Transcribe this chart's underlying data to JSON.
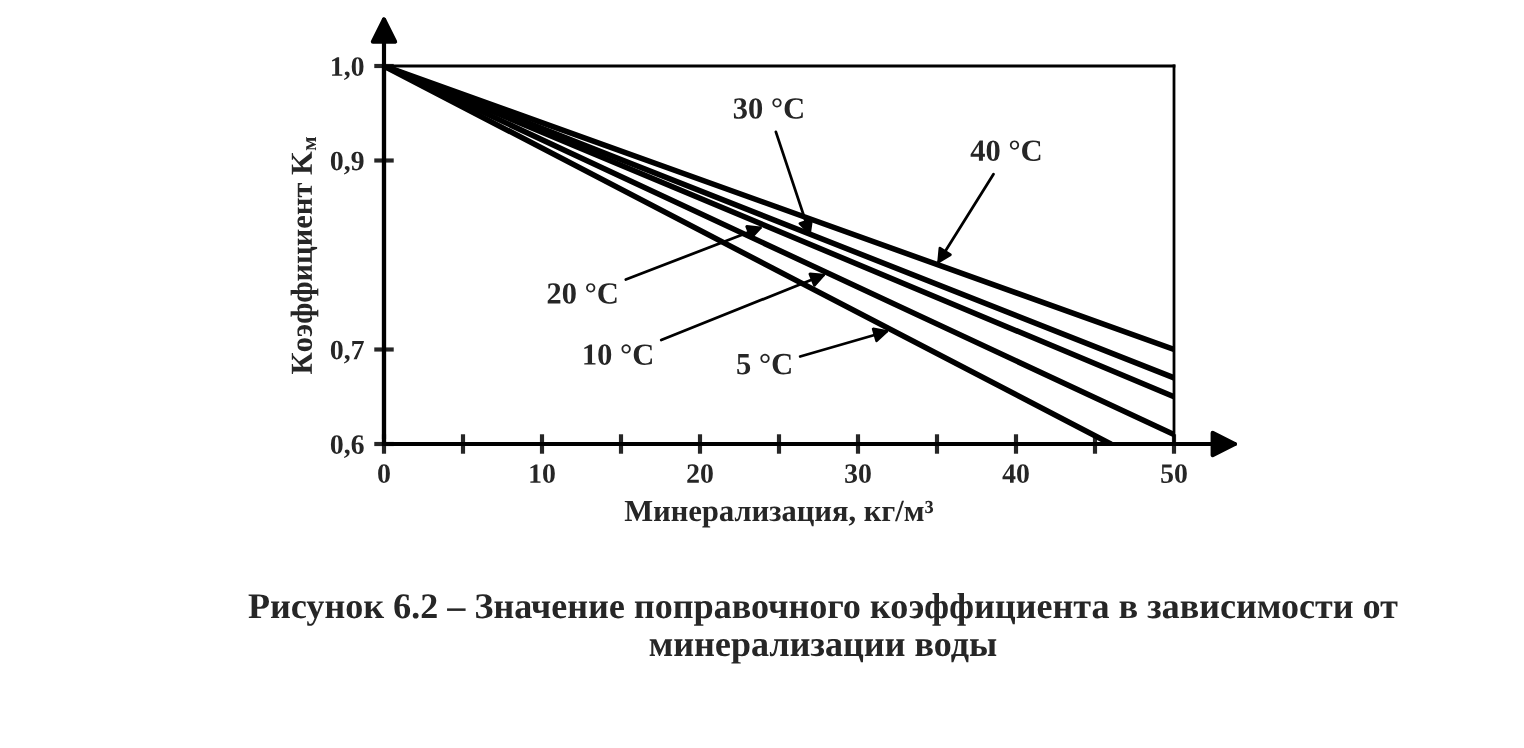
{
  "chart_data": {
    "type": "line",
    "xlabel": "Минерализация, кг/м³",
    "ylabel": "Коэффициент K$_{м}$",
    "series": [
      {
        "color": "#000000",
        "x": [
          0,
          50
        ],
        "values": [
          1.0,
          0.7
        ]
      },
      {
        "color": "#000000",
        "x": [
          0,
          50
        ],
        "values": [
          1.0,
          0.67
        ]
      },
      {
        "color": "#000000",
        "x": [
          0,
          50
        ],
        "values": [
          1.0,
          0.65
        ]
      },
      {
        "color": "#000000",
        "x": [
          0,
          50
        ],
        "values": [
          1.0,
          0.61
        ]
      },
      {
        "color": "#000000",
        "x": [
          0,
          46
        ],
        "values": [
          1.0,
          0.6
        ]
      }
    ],
    "xlim": [
      0,
      50
    ],
    "ylim": [
      0.6,
      1.0
    ],
    "xticks": [
      0,
      {
        "value": 5,
        "label": null
      },
      10,
      {
        "value": 15,
        "label": null
      },
      20,
      {
        "value": 25,
        "label": null
      },
      30,
      {
        "value": 35,
        "label": null
      },
      40,
      {
        "value": 45,
        "label": null
      },
      50
    ],
    "yticks": [
      {
        "value": 0.6,
        "label": "0,6"
      },
      {
        "value": 0.7,
        "label": "0,7"
      },
      {
        "value": 0.9,
        "label": "0,9"
      },
      {
        "value": 1.0,
        "label": "1,0"
      }
    ],
    "grid": false,
    "marker": "none",
    "line_style": "solid",
    "annotations": [
      {
        "text": "40 °C",
        "x": 35,
        "y": 0.79
      },
      {
        "text": "30 °C",
        "x": 27,
        "y": 0.82
      },
      {
        "text": "20 °C",
        "x": 24,
        "y": 0.83
      },
      {
        "text": "10 °C",
        "x": 28,
        "y": 0.78
      },
      {
        "text": "5 °C",
        "x": 32,
        "y": 0.72
      },
      "Рисунок 6.2 – Значение поправочного коэффициента в зависимости от минерализации воды"
    ]
  }
}
